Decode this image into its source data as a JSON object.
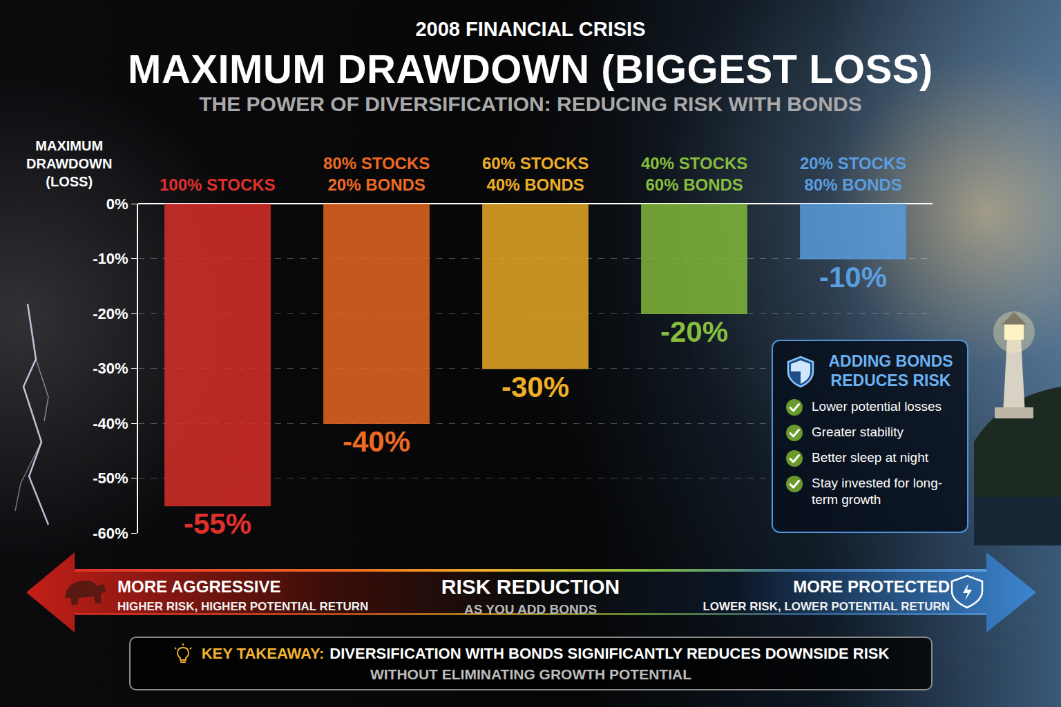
{
  "chart_data": {
    "type": "bar",
    "title": "MAXIMUM DRAWDOWN (BIGGEST LOSS)",
    "subtitle": "THE POWER OF DIVERSIFICATION: REDUCING RISK WITH BONDS",
    "y_label": "MAXIMUM DRAWDOWN (LOSS)",
    "categories": [
      "100% STOCKS",
      "80% STOCKS 20% BONDS",
      "60% STOCKS 40% BONDS",
      "40% STOCKS 60% BONDS",
      "20% STOCKS 80% BONDS"
    ],
    "values": [
      -55,
      -40,
      -30,
      -20,
      -10
    ],
    "value_labels": [
      "-55%",
      "-40%",
      "-30%",
      "-20%",
      "-10%"
    ],
    "data_labels": true,
    "colors": [
      "#e0302a",
      "#ee6a22",
      "#f0ae28",
      "#86bd3c",
      "#5a9ee0"
    ],
    "ylim": [
      -60,
      0
    ],
    "yticks": [
      {
        "value": 0,
        "label": "0%"
      },
      {
        "value": -10,
        "label": "-10%"
      },
      {
        "value": -20,
        "label": "-20%"
      },
      {
        "value": -30,
        "label": "-30%"
      },
      {
        "value": -40,
        "label": "-40%"
      },
      {
        "value": -50,
        "label": "-50%"
      },
      {
        "value": -60,
        "label": "-60%"
      }
    ],
    "grid": true,
    "annotations": {
      "header": "2008 FINANCIAL CRISIS",
      "box": {
        "title": "ADDING BONDS REDUCES RISK",
        "items": [
          "Lower potential losses",
          "Greater stability",
          "Better sleep at night",
          "Stay invested for long-term growth"
        ]
      },
      "arrow": {
        "left_title": "MORE AGGRESSIVE",
        "left_text": "HIGHER RISK, HIGHER POTENTIAL RETURN",
        "center_title": "RISK REDUCTION",
        "center_text": "AS YOU ADD BONDS",
        "right_title": "MORE PROTECTED",
        "right_text": "LOWER RISK, LOWER POTENTIAL RETURN"
      },
      "takeaway": {
        "label": "KEY TAKEAWAY:",
        "text": "DIVERSIFICATION WITH BONDS SIGNIFICANTLY REDUCES DOWNSIDE RISK",
        "subtext": "WITHOUT ELIMINATING GROWTH POTENTIAL"
      }
    }
  }
}
